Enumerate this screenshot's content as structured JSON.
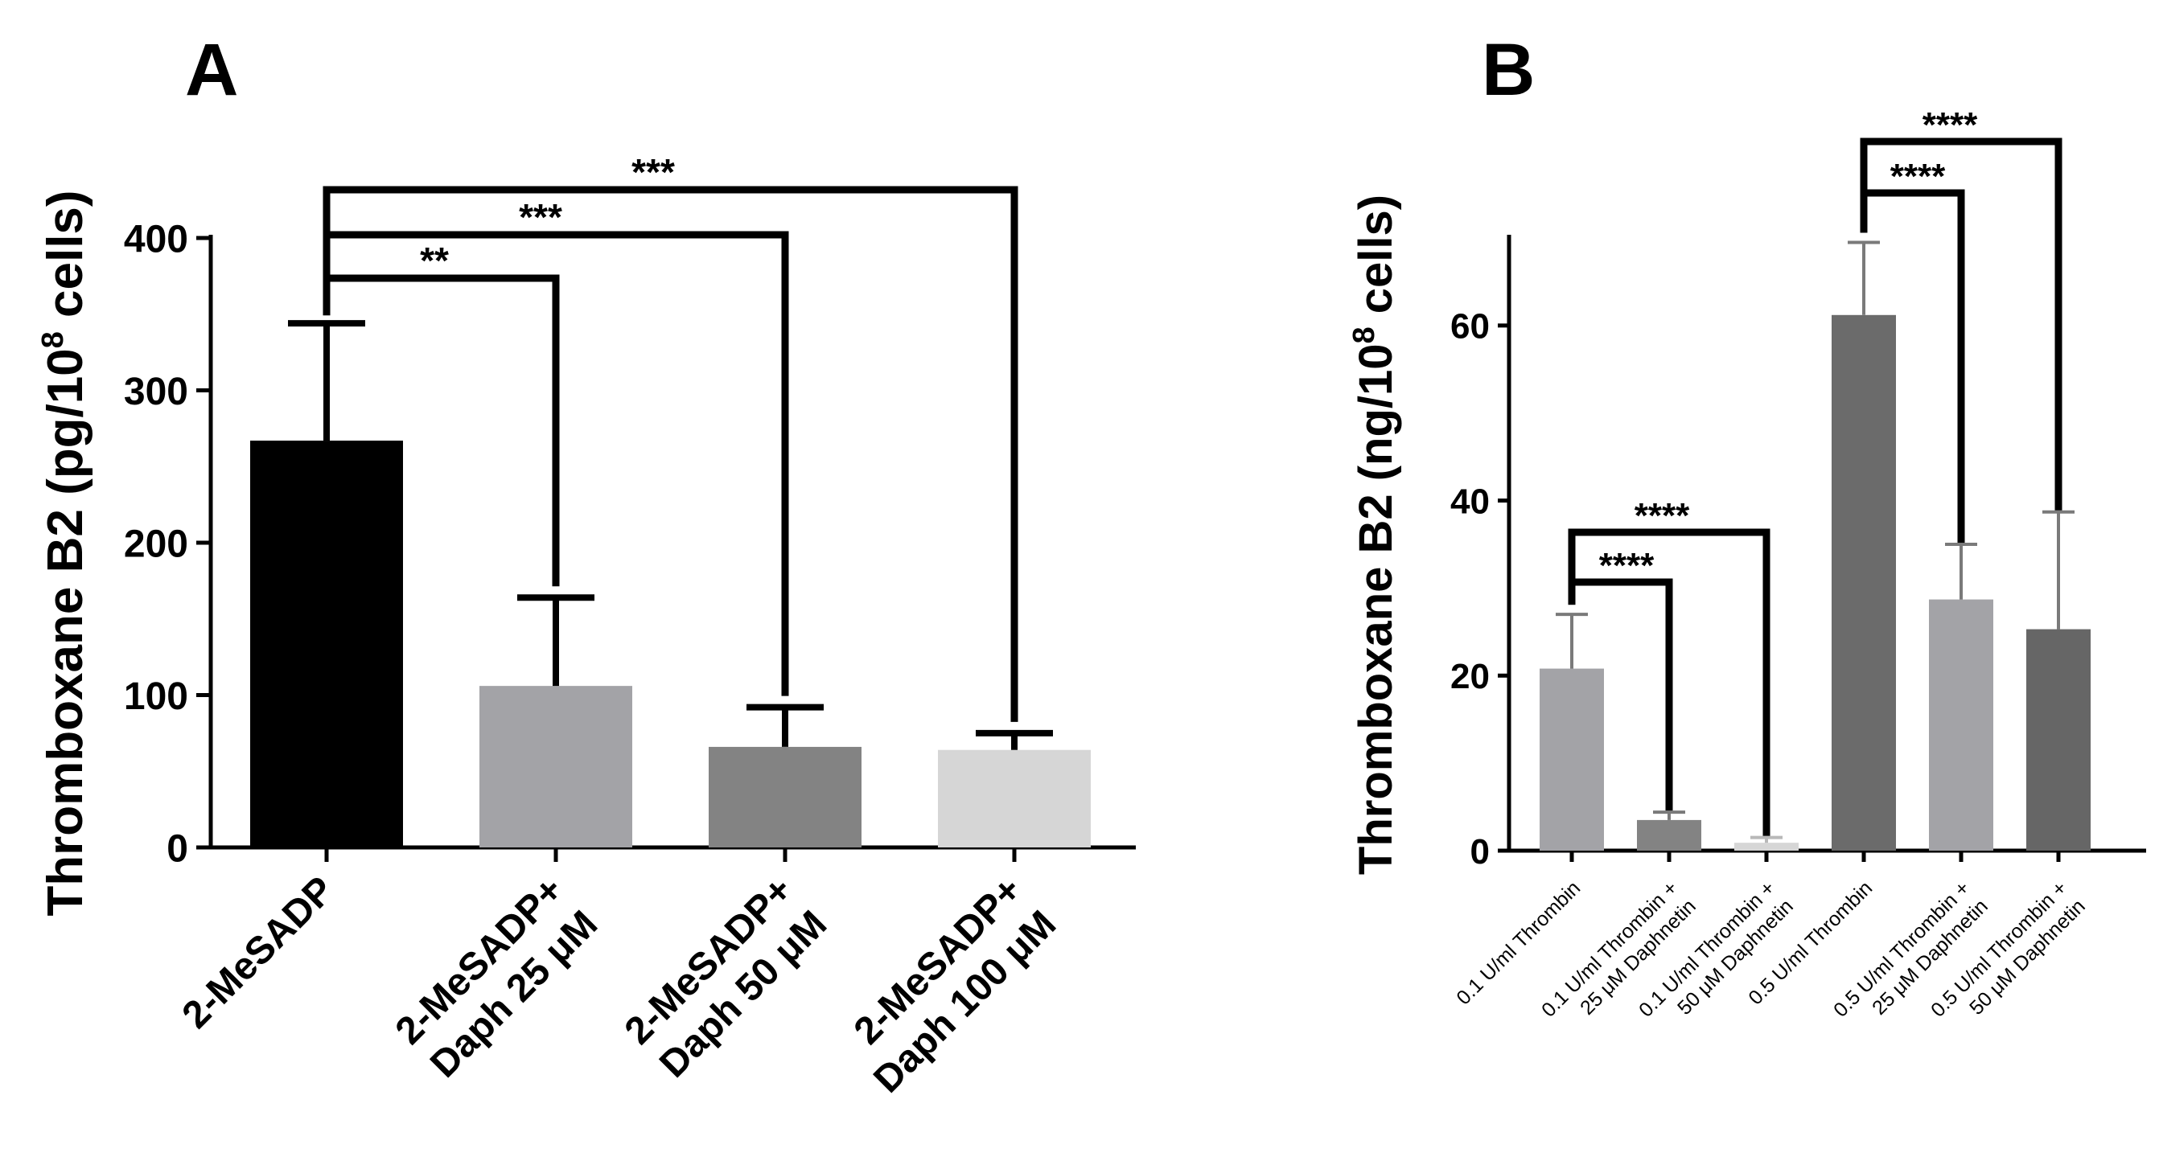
{
  "chart_data": [
    {
      "panel": "A",
      "type": "bar",
      "title": "",
      "xlabel": "",
      "ylabel": "Thromboxane B2 (pg/10",
      "ylabel_sup": "8",
      "ylabel_end": " cells)",
      "ylim": [
        0,
        400
      ],
      "yticks": [
        "0",
        "100",
        "200",
        "300",
        "400"
      ],
      "categories": [
        [
          "2-MeSADP"
        ],
        [
          "2-MeSADP+",
          "Daph 25 μM"
        ],
        [
          "2-MeSADP+",
          "Daph 50 μM"
        ],
        [
          "2-MeSADP+",
          "Daph 100 μM"
        ]
      ],
      "values": [
        267,
        106,
        66,
        64
      ],
      "errors": [
        77,
        58,
        26,
        11
      ],
      "colors": [
        "#000000",
        "#a3a3a7",
        "#838383",
        "#d6d6d6"
      ],
      "comparisons": [
        {
          "from": 0,
          "to": 1,
          "label": "**"
        },
        {
          "from": 0,
          "to": 2,
          "label": "***"
        },
        {
          "from": 0,
          "to": 3,
          "label": "***"
        }
      ]
    },
    {
      "panel": "B",
      "type": "bar",
      "title": "",
      "xlabel": "",
      "ylabel": "Thromboxane B2 (ng/10",
      "ylabel_sup": "8",
      "ylabel_end": " cells)",
      "ylim": [
        0,
        70
      ],
      "yticks": [
        "0",
        "20",
        "40",
        "60"
      ],
      "categories": [
        [
          "0.1 U/ml Thrombin"
        ],
        [
          "0.1 U/ml Thrombin +",
          "25 μM Daphnetin"
        ],
        [
          "0.1 U/ml Thrombin +",
          "50 μM Daphnetin"
        ],
        [
          "0.5 U/ml Thrombin"
        ],
        [
          "0.5 U/ml Thrombin +",
          "25 μM Daphnetin"
        ],
        [
          "0.5 U/ml Thrombin +",
          "50 μM Daphnetin"
        ]
      ],
      "values": [
        20.8,
        3.5,
        0.9,
        61.2,
        28.7,
        25.3
      ],
      "errors": [
        6.2,
        0.9,
        0.6,
        8.3,
        6.3,
        13.4
      ],
      "colors": [
        "#a3a3a7",
        "#838383",
        "#d6d6d6",
        "#6b6b6b",
        "#a3a3a7",
        "#666666"
      ],
      "comparisons": [
        {
          "from": 0,
          "to": 1,
          "label": "****"
        },
        {
          "from": 0,
          "to": 2,
          "label": "****"
        },
        {
          "from": 3,
          "to": 4,
          "label": "****"
        },
        {
          "from": 3,
          "to": 5,
          "label": "****"
        }
      ]
    }
  ]
}
